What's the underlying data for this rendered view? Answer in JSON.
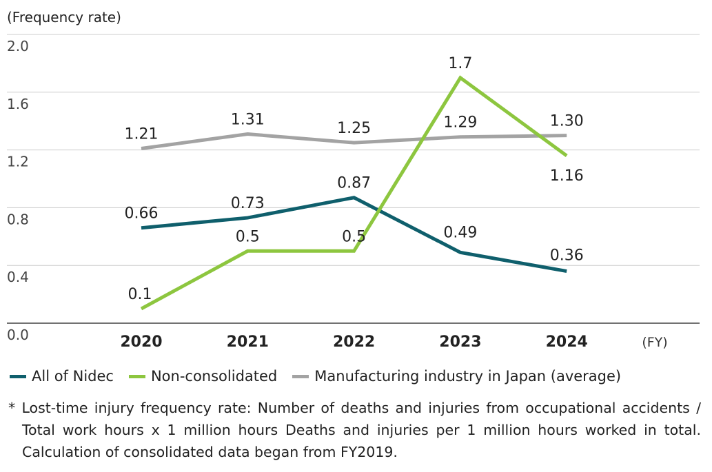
{
  "chart_data": {
    "type": "line",
    "ylabel": "(Frequency rate)",
    "xlabel": "(FY)",
    "categories": [
      "2020",
      "2021",
      "2022",
      "2023",
      "2024"
    ],
    "ylim": [
      0,
      2.0
    ],
    "yticks": [
      "0.0",
      "0.4",
      "0.8",
      "1.2",
      "1.6",
      "2.0"
    ],
    "grid": true,
    "legend_position": "bottom",
    "series": [
      {
        "name": "All of Nidec",
        "color": "#0f5f6c",
        "values": [
          0.66,
          0.73,
          0.87,
          0.49,
          0.36
        ],
        "labels": [
          "0.66",
          "0.73",
          "0.87",
          "0.49",
          "0.36"
        ]
      },
      {
        "name": "Non-consolidated",
        "color": "#8dc63f",
        "values": [
          0.1,
          0.5,
          0.5,
          1.7,
          1.16
        ],
        "labels": [
          "0.1",
          "0.5",
          "0.5",
          "1.7",
          "1.16"
        ]
      },
      {
        "name": "Manufacturing industry in Japan (average)",
        "color": "#a3a3a3",
        "values": [
          1.21,
          1.31,
          1.25,
          1.29,
          1.3
        ],
        "labels": [
          "1.21",
          "1.31",
          "1.25",
          "1.29",
          "1.30"
        ]
      }
    ]
  },
  "footnote": "* Lost-time injury frequency rate: Number of deaths and injuries from occupational accidents / Total work hours x 1 million hours Deaths and injuries per 1 million hours worked in total. Calculation of consolidated data began from FY2019."
}
